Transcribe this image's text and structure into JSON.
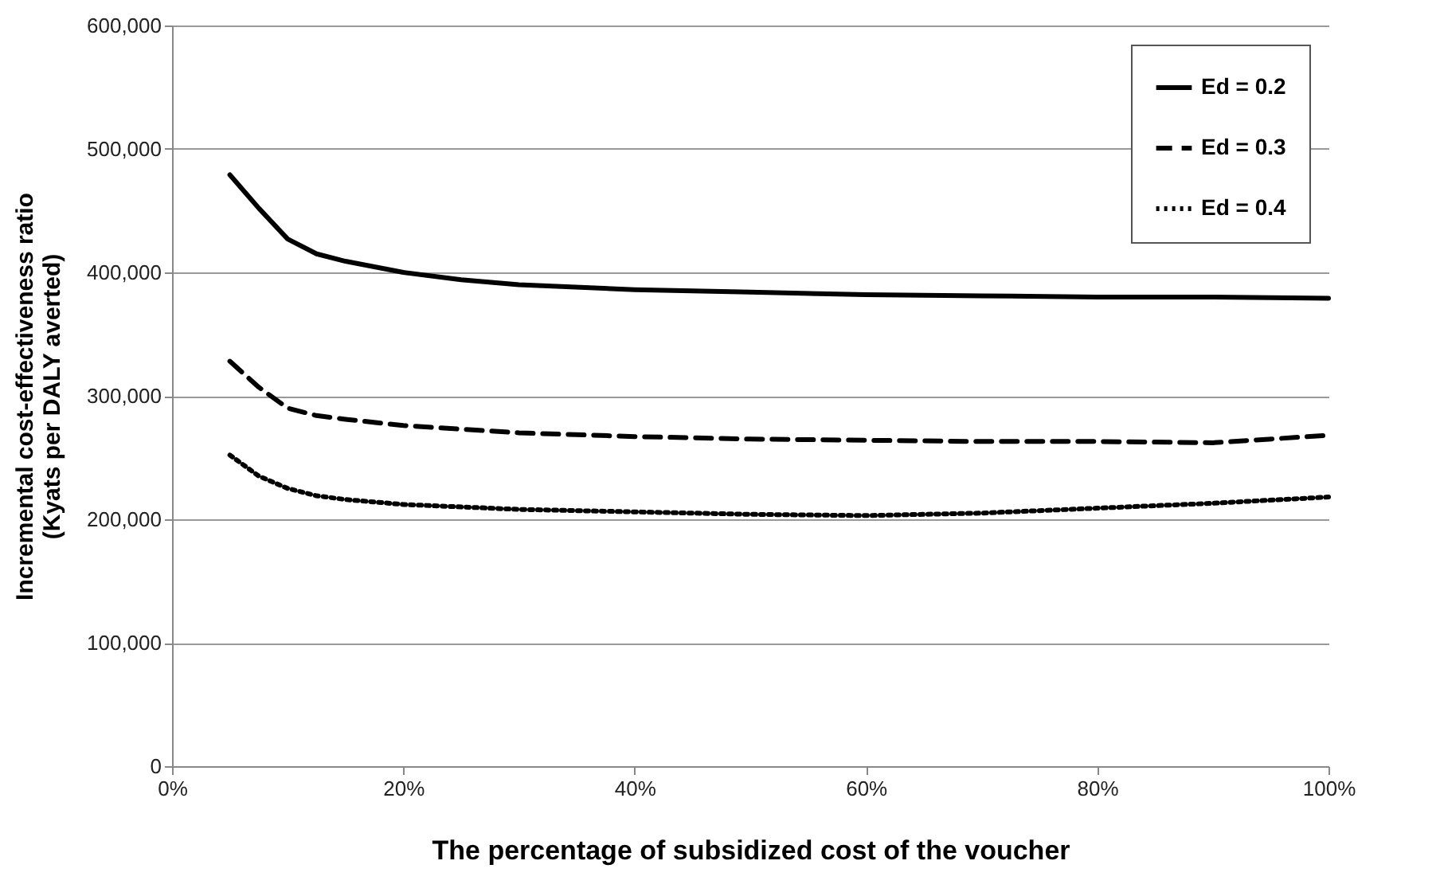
{
  "chart_data": {
    "type": "line",
    "xlabel": "The percentage of subsidized cost of the voucher",
    "ylabel": "Incremental cost-effectiveness ratio\n(Kyats per DALY averted)",
    "x": [
      5,
      7.5,
      10,
      12.5,
      15,
      20,
      25,
      30,
      40,
      50,
      60,
      70,
      80,
      90,
      100
    ],
    "series": [
      {
        "name": "Ed = 0.2",
        "color": "#000000",
        "line_style": "solid",
        "values": [
          479000,
          452000,
          427000,
          415000,
          409000,
          400000,
          394000,
          390000,
          386000,
          384000,
          382000,
          381000,
          380000,
          380000,
          379000
        ]
      },
      {
        "name": "Ed = 0.3",
        "color": "#000000",
        "line_style": "dashed",
        "values": [
          328000,
          307000,
          290000,
          284000,
          281000,
          276000,
          273000,
          270000,
          267000,
          265000,
          264000,
          263000,
          263000,
          262000,
          268000
        ]
      },
      {
        "name": "Ed = 0.4",
        "color": "#000000",
        "line_style": "dotted",
        "values": [
          252000,
          235000,
          225000,
          219000,
          216000,
          212000,
          210000,
          208000,
          206000,
          204000,
          203000,
          205000,
          209000,
          213000,
          218000
        ]
      }
    ],
    "xlim": [
      0,
      100
    ],
    "xticks": [
      {
        "value": 0,
        "label": "0%"
      },
      {
        "value": 20,
        "label": "20%"
      },
      {
        "value": 40,
        "label": "40%"
      },
      {
        "value": 60,
        "label": "60%"
      },
      {
        "value": 80,
        "label": "80%"
      },
      {
        "value": 100,
        "label": "100%"
      }
    ],
    "ylim": [
      0,
      600000
    ],
    "yticks": [
      {
        "value": 0,
        "label": "0"
      },
      {
        "value": 100000,
        "label": "100,000"
      },
      {
        "value": 200000,
        "label": "200,000"
      },
      {
        "value": 300000,
        "label": "300,000"
      },
      {
        "value": 400000,
        "label": "400,000"
      },
      {
        "value": 500000,
        "label": "500,000"
      },
      {
        "value": 600000,
        "label": "600,000"
      }
    ],
    "grid": "y",
    "legend": "top right",
    "marker": "none"
  }
}
